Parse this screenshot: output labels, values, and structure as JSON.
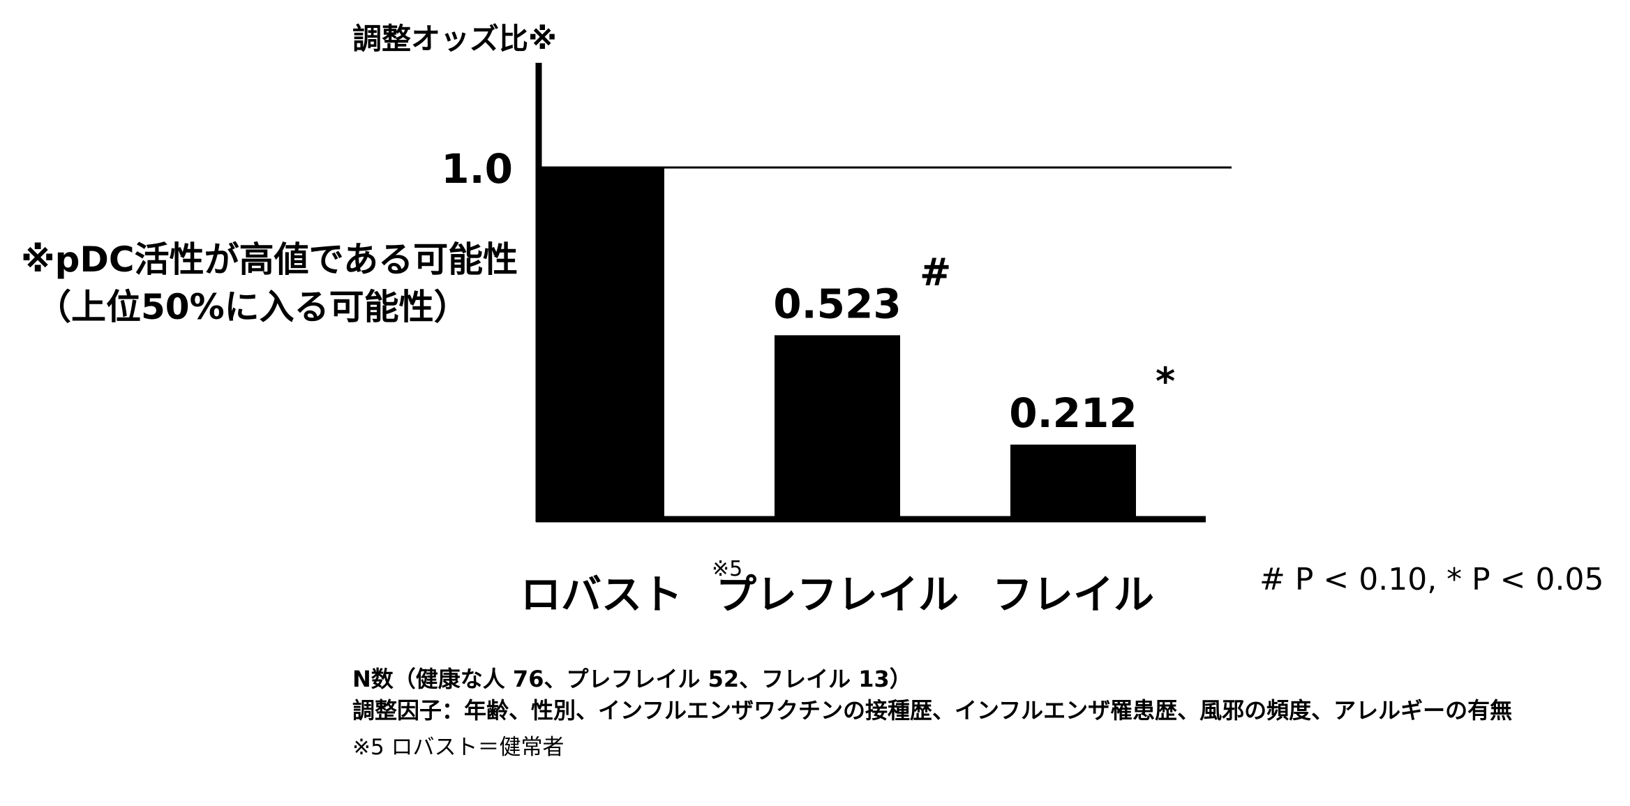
{
  "chart_data": {
    "type": "bar",
    "categories": [
      "ロバスト",
      "プレフレイル",
      "フレイル"
    ],
    "category_superscripts": [
      "※5",
      "",
      ""
    ],
    "values": [
      1.0,
      0.523,
      0.212
    ],
    "data_labels": [
      "",
      "0.523",
      "0.212"
    ],
    "significance_marks": [
      "",
      "#",
      "*"
    ],
    "ylabel": "調整オッズ比※",
    "ytick_labels": [
      "1.0"
    ],
    "reference_line_value": 1.0,
    "ylim": [
      0,
      1.3
    ],
    "grid": false,
    "bar_color": "#000000"
  },
  "annotations": {
    "note_line1": "※pDC活性が高値である可能性",
    "note_line2": "（上位50%に入る可能性）",
    "significance_legend": "# P < 0.10, * P < 0.05"
  },
  "footer": {
    "n_text": "N数（健康な人 76、プレフレイル 52、フレイル 13）",
    "adjust_text": "調整因子：年齢、性別、インフルエンザワクチンの接種歴、インフルエンザ罹患歴、風邪の頻度、アレルギーの有無",
    "footnote": "※5 ロバスト＝健常者"
  }
}
